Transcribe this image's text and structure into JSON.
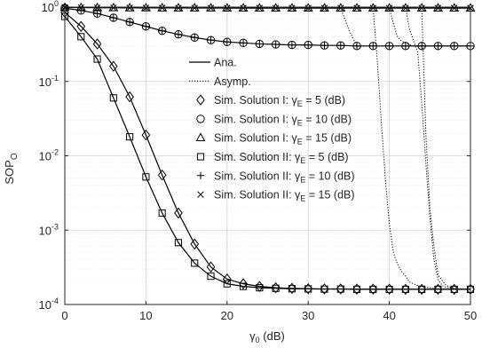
{
  "chart_data": {
    "type": "line",
    "ylabel": "SOP",
    "ylabel_sub": "O",
    "xlabel": "γ",
    "xlabel_sub": "0",
    "xlabel_unit": " (dB)",
    "x_scale": "linear",
    "y_scale": "log",
    "xlim": [
      0,
      50
    ],
    "ylim": [
      0.0001,
      1
    ],
    "x_ticks": [
      0,
      10,
      20,
      30,
      40,
      50
    ],
    "y_ticks": [
      {
        "value": 0.0001,
        "base": "10",
        "exp": "-4"
      },
      {
        "value": 0.001,
        "base": "10",
        "exp": "-3"
      },
      {
        "value": 0.01,
        "base": "10",
        "exp": "-2"
      },
      {
        "value": 0.1,
        "base": "10",
        "exp": "-1"
      },
      {
        "value": 1,
        "base": "10",
        "exp": "0"
      }
    ],
    "grid": "major+minor",
    "legend_position": "inside-right",
    "legend": [
      {
        "kind": "line-solid",
        "pre": "Ana.",
        "sub": "",
        "post": ""
      },
      {
        "kind": "line-dotted",
        "pre": "Asymp.",
        "sub": "",
        "post": ""
      },
      {
        "kind": "diamond",
        "pre": "Sim. Solution I: γ",
        "sub": "E",
        "post": " = 5 (dB)"
      },
      {
        "kind": "circle",
        "pre": "Sim. Solution I: γ",
        "sub": "E",
        "post": " = 10 (dB)"
      },
      {
        "kind": "triangle",
        "pre": "Sim. Solution I: γ",
        "sub": "E",
        "post": " = 15 (dB)"
      },
      {
        "kind": "square",
        "pre": "Sim. Solution II: γ",
        "sub": "E",
        "post": " = 5 (dB)"
      },
      {
        "kind": "plus",
        "pre": "Sim. Solution II: γ",
        "sub": "E",
        "post": " = 10 (dB)"
      },
      {
        "kind": "cross",
        "pre": "Sim. Solution II: γ",
        "sub": "E",
        "post": " = 15 (dB)"
      }
    ],
    "analytical_curves": [
      {
        "x": [
          0,
          2,
          4,
          6,
          8,
          10,
          12,
          14,
          16,
          18,
          20,
          22,
          24,
          26,
          28,
          30,
          32,
          34,
          36,
          38,
          40,
          42,
          44,
          46,
          48,
          50
        ],
        "y": [
          0.85,
          0.55,
          0.32,
          0.16,
          0.062,
          0.019,
          0.0055,
          0.0017,
          0.00065,
          0.00032,
          0.00022,
          0.00019,
          0.000175,
          0.000168,
          0.000165,
          0.000163,
          0.000162,
          0.000162,
          0.000161,
          0.000161,
          0.000161,
          0.00016,
          0.00016,
          0.00016,
          0.00016,
          0.00016
        ]
      },
      {
        "x": [
          0,
          2,
          4,
          6,
          8,
          10,
          12,
          14,
          16,
          18,
          20,
          22,
          24,
          26,
          28,
          30,
          32,
          34,
          36,
          38,
          40,
          42,
          44,
          46,
          48,
          50
        ],
        "y": [
          0.75,
          0.4,
          0.2,
          0.06,
          0.018,
          0.0052,
          0.0017,
          0.00068,
          0.00036,
          0.00024,
          0.00019,
          0.000175,
          0.000168,
          0.000165,
          0.000163,
          0.000162,
          0.000161,
          0.000161,
          0.00016,
          0.00016,
          0.00016,
          0.00016,
          0.00016,
          0.00016,
          0.00016,
          0.00016
        ]
      },
      {
        "x": [
          0,
          2,
          4,
          6,
          8,
          10,
          12,
          14,
          16,
          18,
          20,
          22,
          24,
          26,
          28,
          30,
          32,
          34,
          36,
          38,
          40,
          42,
          44,
          46,
          48,
          50
        ],
        "y": [
          0.97,
          0.9,
          0.82,
          0.72,
          0.63,
          0.55,
          0.48,
          0.43,
          0.39,
          0.36,
          0.34,
          0.33,
          0.32,
          0.315,
          0.31,
          0.31,
          0.305,
          0.305,
          0.3,
          0.3,
          0.3,
          0.3,
          0.3,
          0.3,
          0.3,
          0.3
        ]
      },
      {
        "x": [
          0,
          2,
          4,
          6,
          8,
          10,
          12,
          14,
          16,
          18,
          20,
          22,
          24,
          26,
          28,
          30,
          32,
          34,
          36,
          38,
          40,
          42,
          44,
          46,
          48,
          50
        ],
        "y": [
          0.99,
          0.985,
          0.98,
          0.978,
          0.976,
          0.975,
          0.974,
          0.973,
          0.972,
          0.971,
          0.97,
          0.97,
          0.97,
          0.97,
          0.97,
          0.97,
          0.97,
          0.97,
          0.97,
          0.97,
          0.97,
          0.97,
          0.97,
          0.97,
          0.97,
          0.97
        ]
      }
    ],
    "asymptotic_curves": [
      {
        "x": [
          34,
          35,
          36,
          37,
          38,
          39,
          40,
          41,
          42,
          43,
          44,
          45,
          46,
          47,
          48,
          49,
          50
        ],
        "y": [
          0.98,
          0.5,
          0.3,
          0.3,
          0.3,
          0.3,
          0.3,
          0.3,
          0.3,
          0.3,
          0.3,
          0.3,
          0.3,
          0.3,
          0.3,
          0.3,
          0.3
        ]
      },
      {
        "x": [
          38,
          38.5,
          39,
          39.5,
          40,
          40.5,
          41,
          41.5,
          42,
          42.5,
          43,
          43.5,
          44,
          44.5,
          45,
          45.5,
          46,
          47,
          48,
          49,
          50
        ],
        "y": [
          0.98,
          0.2,
          0.03,
          0.005,
          0.0012,
          0.0005,
          0.00035,
          0.00028,
          0.00024,
          0.0002,
          0.00019,
          0.00018,
          0.000175,
          0.00017,
          0.000168,
          0.000165,
          0.000163,
          0.000162,
          0.000161,
          0.00016,
          0.00016
        ]
      },
      {
        "x": [
          40,
          40.5,
          41,
          41.5,
          42,
          42.5,
          43,
          43.5,
          44,
          44.5,
          45,
          45.5,
          46,
          46.5,
          47,
          48,
          49,
          50
        ],
        "y": [
          0.98,
          0.6,
          0.4,
          0.35,
          0.33,
          0.31,
          0.3,
          0.3,
          0.3,
          0.3,
          0.3,
          0.3,
          0.3,
          0.3,
          0.3,
          0.3,
          0.3,
          0.3
        ]
      },
      {
        "x": [
          42,
          42.5,
          43,
          43.5,
          44,
          44.5,
          45,
          45.5,
          46,
          46.5,
          47,
          48,
          49,
          50
        ],
        "y": [
          0.98,
          0.5,
          0.35,
          0.25,
          0.05,
          0.008,
          0.0015,
          0.0004,
          0.00022,
          0.00018,
          0.00017,
          0.000163,
          0.000161,
          0.00016
        ]
      },
      {
        "x": [
          44,
          44.5,
          45,
          45.5,
          46,
          47,
          48,
          49,
          50
        ],
        "y": [
          0.98,
          0.02,
          0.002,
          0.0006,
          0.00025,
          0.00018,
          0.000165,
          0.000162,
          0.00016
        ]
      }
    ],
    "series": [
      {
        "marker": "diamond",
        "x": [
          0,
          2,
          4,
          6,
          8,
          10,
          12,
          14,
          16,
          18,
          20,
          22,
          24,
          26,
          28,
          30,
          32,
          34,
          36,
          38,
          40,
          42,
          44,
          46,
          48,
          50
        ],
        "y": [
          0.85,
          0.55,
          0.32,
          0.16,
          0.062,
          0.019,
          0.0055,
          0.0017,
          0.00065,
          0.00032,
          0.00022,
          0.00019,
          0.000175,
          0.000168,
          0.000165,
          0.000163,
          0.000162,
          0.000162,
          0.000161,
          0.000161,
          0.000161,
          0.00016,
          0.00016,
          0.00016,
          0.00016,
          0.00016
        ]
      },
      {
        "marker": "square",
        "x": [
          0,
          2,
          4,
          6,
          8,
          10,
          12,
          14,
          16,
          18,
          20,
          22,
          24,
          26,
          28,
          30,
          32,
          34,
          36,
          38,
          40,
          42,
          44,
          46,
          48,
          50
        ],
        "y": [
          0.75,
          0.4,
          0.2,
          0.06,
          0.018,
          0.0052,
          0.0017,
          0.00068,
          0.00036,
          0.00024,
          0.00019,
          0.000175,
          0.000168,
          0.000165,
          0.000163,
          0.000162,
          0.000161,
          0.000161,
          0.00016,
          0.00016,
          0.00016,
          0.00016,
          0.00016,
          0.00016,
          0.00016,
          0.00016
        ]
      },
      {
        "marker": "circle",
        "x": [
          0,
          2,
          4,
          6,
          8,
          10,
          12,
          14,
          16,
          18,
          20,
          22,
          24,
          26,
          28,
          30,
          32,
          34,
          36,
          38,
          40,
          42,
          44,
          46,
          48,
          50
        ],
        "y": [
          0.97,
          0.9,
          0.82,
          0.72,
          0.63,
          0.55,
          0.48,
          0.43,
          0.39,
          0.36,
          0.34,
          0.33,
          0.32,
          0.315,
          0.31,
          0.31,
          0.305,
          0.305,
          0.3,
          0.3,
          0.3,
          0.3,
          0.3,
          0.3,
          0.3,
          0.3
        ]
      },
      {
        "marker": "plus",
        "x": [
          0,
          2,
          4,
          6,
          8,
          10,
          12,
          14,
          16,
          18,
          20,
          22,
          24,
          26,
          28,
          30,
          32,
          34,
          36,
          38,
          40,
          42,
          44,
          46,
          48,
          50
        ],
        "y": [
          0.97,
          0.9,
          0.82,
          0.72,
          0.63,
          0.55,
          0.48,
          0.43,
          0.39,
          0.36,
          0.34,
          0.33,
          0.32,
          0.315,
          0.31,
          0.31,
          0.305,
          0.305,
          0.3,
          0.3,
          0.3,
          0.3,
          0.3,
          0.3,
          0.3,
          0.3
        ]
      },
      {
        "marker": "triangle",
        "x": [
          0,
          2,
          4,
          6,
          8,
          10,
          12,
          14,
          16,
          18,
          20,
          22,
          24,
          26,
          28,
          30,
          32,
          34,
          36,
          38,
          40,
          42,
          44,
          46,
          48,
          50
        ],
        "y": [
          0.99,
          0.985,
          0.98,
          0.978,
          0.976,
          0.975,
          0.974,
          0.973,
          0.972,
          0.971,
          0.97,
          0.97,
          0.97,
          0.97,
          0.97,
          0.97,
          0.97,
          0.97,
          0.97,
          0.97,
          0.97,
          0.97,
          0.97,
          0.97,
          0.97,
          0.97
        ]
      },
      {
        "marker": "cross",
        "x": [
          0,
          2,
          4,
          6,
          8,
          10,
          12,
          14,
          16,
          18,
          20,
          22,
          24,
          26,
          28,
          30,
          32,
          34,
          36,
          38,
          40,
          42,
          44,
          46,
          48,
          50
        ],
        "y": [
          0.99,
          0.985,
          0.98,
          0.978,
          0.976,
          0.975,
          0.974,
          0.973,
          0.972,
          0.971,
          0.97,
          0.97,
          0.97,
          0.97,
          0.97,
          0.97,
          0.97,
          0.97,
          0.97,
          0.97,
          0.97,
          0.97,
          0.97,
          0.97,
          0.97,
          0.97
        ]
      }
    ]
  }
}
